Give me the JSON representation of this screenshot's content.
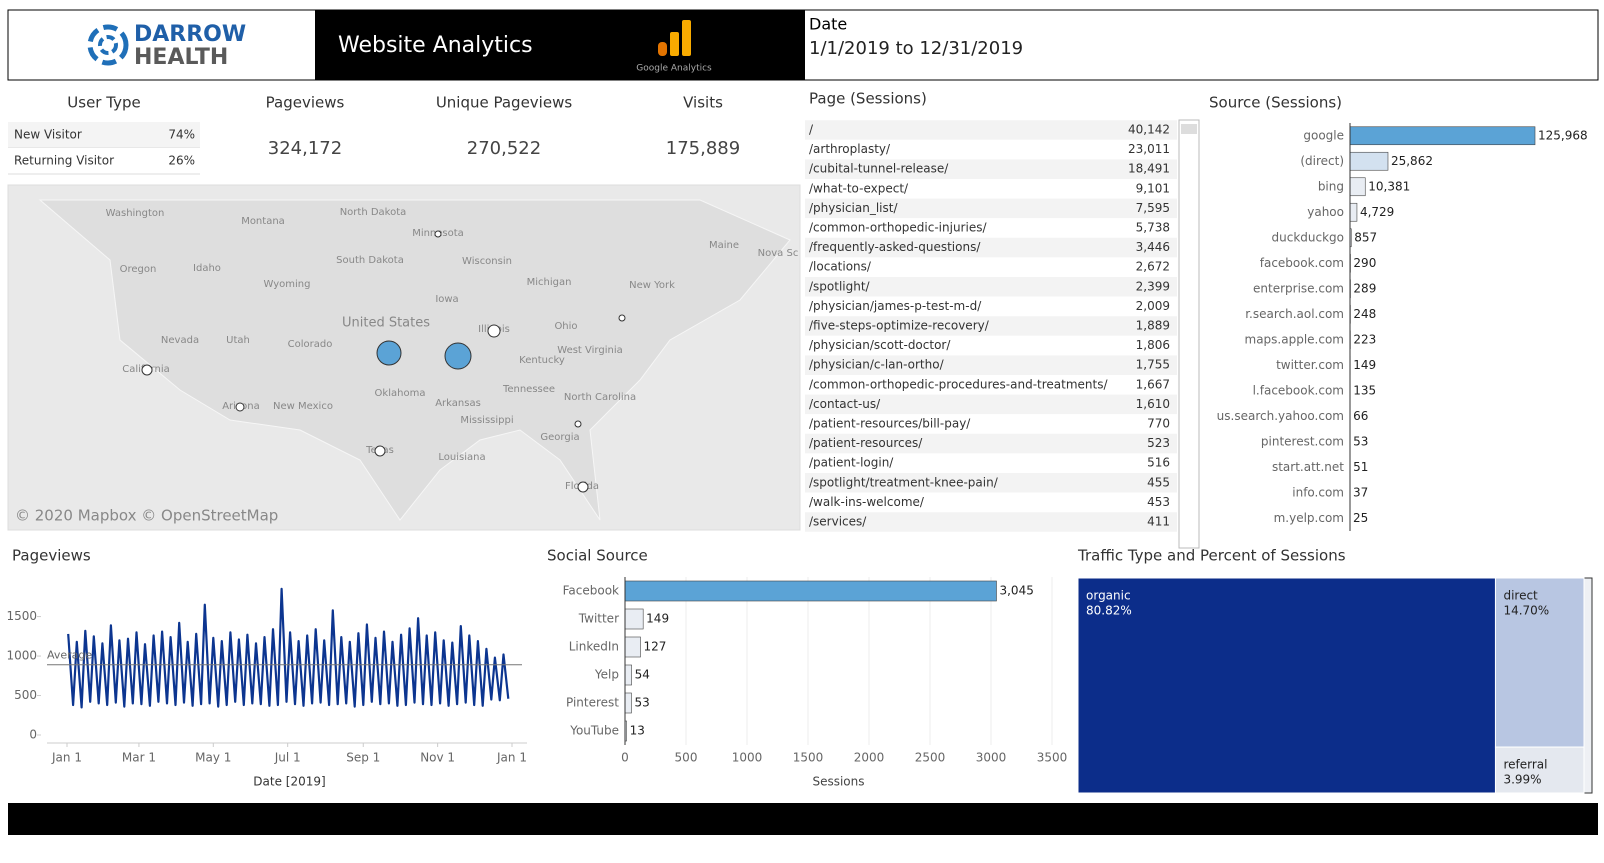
{
  "header": {
    "logo_line1": "DARROW",
    "logo_line2": "HEALTH",
    "title": "Website Analytics",
    "ga_label": "Google Analytics",
    "date_label": "Date",
    "date_range": "1/1/2019 to 12/31/2019"
  },
  "user_type": {
    "title": "User Type",
    "rows": [
      [
        "New Visitor",
        "74%"
      ],
      [
        "Returning Visitor",
        "26%"
      ]
    ]
  },
  "kpis": [
    {
      "label": "Pageviews",
      "value": "324,172"
    },
    {
      "label": "Unique Pageviews",
      "value": "270,522"
    },
    {
      "label": "Visits",
      "value": "175,889"
    }
  ],
  "map": {
    "attribution": "© 2020 Mapbox © OpenStreetMap",
    "labels": [
      "Washington",
      "Montana",
      "North Dakota",
      "Minnesota",
      "Oregon",
      "Idaho",
      "South Dakota",
      "Wisconsin",
      "Wyoming",
      "Michigan",
      "New York",
      "Maine",
      "Nova Sc",
      "Iowa",
      "United States",
      "Nevada",
      "Utah",
      "Colorado",
      "Illinois",
      "Ohio",
      "California",
      "Kentucky",
      "West Virginia",
      "Oklahoma",
      "Tennessee",
      "North Carolina",
      "Arizona",
      "New Mexico",
      "Arkansas",
      "Mississippi",
      "Georgia",
      "Texas",
      "Louisiana",
      "Florida"
    ]
  },
  "page_sessions": {
    "title": "Page (Sessions)",
    "rows": [
      [
        "/",
        "40,142"
      ],
      [
        "/arthroplasty/",
        "23,011"
      ],
      [
        "/cubital-tunnel-release/",
        "18,491"
      ],
      [
        "/what-to-expect/",
        "9,101"
      ],
      [
        "/physician_list/",
        "7,595"
      ],
      [
        "/common-orthopedic-injuries/",
        "5,738"
      ],
      [
        "/frequently-asked-questions/",
        "3,446"
      ],
      [
        "/locations/",
        "2,672"
      ],
      [
        "/spotlight/",
        "2,399"
      ],
      [
        "/physician/james-p-test-m-d/",
        "2,009"
      ],
      [
        "/five-steps-optimize-recovery/",
        "1,889"
      ],
      [
        "/physician/scott-doctor/",
        "1,806"
      ],
      [
        "/physician/c-lan-ortho/",
        "1,755"
      ],
      [
        "/common-orthopedic-procedures-and-treatments/",
        "1,667"
      ],
      [
        "/contact-us/",
        "1,610"
      ],
      [
        "/patient-resources/bill-pay/",
        "770"
      ],
      [
        "/patient-resources/",
        "523"
      ],
      [
        "/patient-login/",
        "516"
      ],
      [
        "/spotlight/treatment-knee-pain/",
        "455"
      ],
      [
        "/walk-ins-welcome/",
        "453"
      ],
      [
        "/services/",
        "411"
      ]
    ]
  },
  "chart_data": [
    {
      "type": "bar",
      "orientation": "horizontal",
      "title": "Source (Sessions)",
      "categories": [
        "google",
        "(direct)",
        "bing",
        "yahoo",
        "duckduckgo",
        "facebook.com",
        "enterprise.com",
        "r.search.aol.com",
        "maps.apple.com",
        "twitter.com",
        "l.facebook.com",
        "us.search.yahoo.com",
        "pinterest.com",
        "start.att.net",
        "info.com",
        "m.yelp.com"
      ],
      "values": [
        125968,
        25862,
        10381,
        4729,
        857,
        290,
        289,
        248,
        223,
        149,
        135,
        66,
        53,
        51,
        37,
        25
      ],
      "value_labels": [
        "125,968",
        "25,862",
        "10,381",
        "4,729",
        "857",
        "290",
        "289",
        "248",
        "223",
        "149",
        "135",
        "66",
        "53",
        "51",
        "37",
        "25"
      ],
      "colors": [
        "#5ba3d6",
        "#d3e1f0",
        "#e9edf3",
        "#e9edf3",
        "#e9edf3",
        "#e9edf3",
        "#e9edf3",
        "#e9edf3",
        "#e9edf3",
        "#e9edf3",
        "#e9edf3",
        "#e9edf3",
        "#e9edf3",
        "#e9edf3",
        "#e9edf3",
        "#e9edf3"
      ]
    },
    {
      "type": "line",
      "title": "Pageviews",
      "x_label": "Date [2019]",
      "color": "#0c3590",
      "x": [
        1,
        5,
        8,
        12,
        15,
        19,
        22,
        26,
        29,
        33,
        36,
        40,
        43,
        47,
        50,
        54,
        57,
        61,
        64,
        68,
        71,
        75,
        78,
        82,
        85,
        89,
        92,
        96,
        99,
        103,
        106,
        110,
        113,
        117,
        120,
        124,
        127,
        131,
        134,
        138,
        141,
        145,
        148,
        152,
        155,
        159,
        162,
        166,
        169,
        173,
        176,
        180,
        183,
        187,
        190,
        194,
        197,
        201,
        204,
        208,
        211,
        215,
        218,
        222,
        225,
        229,
        232,
        236,
        239,
        243,
        246,
        250,
        253,
        257,
        260,
        264,
        267,
        271,
        274,
        278,
        281,
        285,
        288,
        292,
        295,
        299,
        302,
        306,
        309,
        313,
        316,
        320,
        323,
        327,
        330,
        334,
        337,
        341,
        344,
        348,
        351,
        355,
        358,
        362
      ],
      "values": [
        1280,
        380,
        1180,
        350,
        1320,
        420,
        1250,
        400,
        1160,
        380,
        1390,
        410,
        1200,
        360,
        1220,
        400,
        1300,
        390,
        1150,
        370,
        1260,
        420,
        1310,
        400,
        1240,
        380,
        1420,
        410,
        1180,
        370,
        1280,
        390,
        1650,
        400,
        1230,
        360,
        1190,
        380,
        1300,
        420,
        1210,
        380,
        1270,
        400,
        1160,
        390,
        1240,
        370,
        1340,
        380,
        1850,
        420,
        1300,
        390,
        1190,
        370,
        1260,
        400,
        1340,
        410,
        1200,
        380,
        1580,
        390,
        1240,
        400,
        1180,
        360,
        1290,
        380,
        1400,
        420,
        1230,
        390,
        1310,
        400,
        1180,
        370,
        1270,
        380,
        1350,
        410,
        1480,
        390,
        1260,
        380,
        1300,
        400,
        1200,
        370,
        1170,
        390,
        1380,
        410,
        1260,
        380,
        1190,
        370,
        1090,
        450,
        980,
        440,
        1020,
        460
      ],
      "xlim": [
        0,
        365
      ],
      "xticks": [
        {
          "value": 0,
          "label": "Jan 1"
        },
        {
          "value": 59,
          "label": "Mar 1"
        },
        {
          "value": 120,
          "label": "May 1"
        },
        {
          "value": 181,
          "label": "Jul 1"
        },
        {
          "value": 243,
          "label": "Sep 1"
        },
        {
          "value": 304,
          "label": "Nov 1"
        },
        {
          "value": 365,
          "label": "Jan 1"
        }
      ],
      "ylim": [
        0,
        1900
      ],
      "yticks": [
        0,
        500,
        1000,
        1500
      ],
      "reference_line": {
        "value": 890,
        "label": "Average"
      },
      "grid": false
    },
    {
      "type": "bar",
      "orientation": "horizontal",
      "title": "Social Source",
      "x_label": "Sessions",
      "categories": [
        "Facebook",
        "Twitter",
        "LinkedIn",
        "Yelp",
        "Pinterest",
        "YouTube"
      ],
      "values": [
        3045,
        149,
        127,
        54,
        53,
        13
      ],
      "value_labels": [
        "3,045",
        "149",
        "127",
        "54",
        "53",
        "13"
      ],
      "colors": [
        "#5ba3d6",
        "#e9edf3",
        "#e9edf3",
        "#e9edf3",
        "#e9edf3",
        "#e9edf3"
      ],
      "xlim": [
        0,
        3500
      ],
      "xticks": [
        0,
        500,
        1000,
        1500,
        2000,
        2500,
        3000,
        3500
      ],
      "grid": true
    },
    {
      "type": "treemap",
      "title": "Traffic Type and Percent of Sessions",
      "categories": [
        "organic",
        "direct",
        "referral"
      ],
      "values": [
        80.82,
        14.7,
        3.99
      ],
      "value_labels": [
        "80.82%",
        "14.70%",
        "3.99%"
      ],
      "colors": [
        "#0c2d8a",
        "#b8c6e2",
        "#e4e8ef"
      ]
    }
  ]
}
